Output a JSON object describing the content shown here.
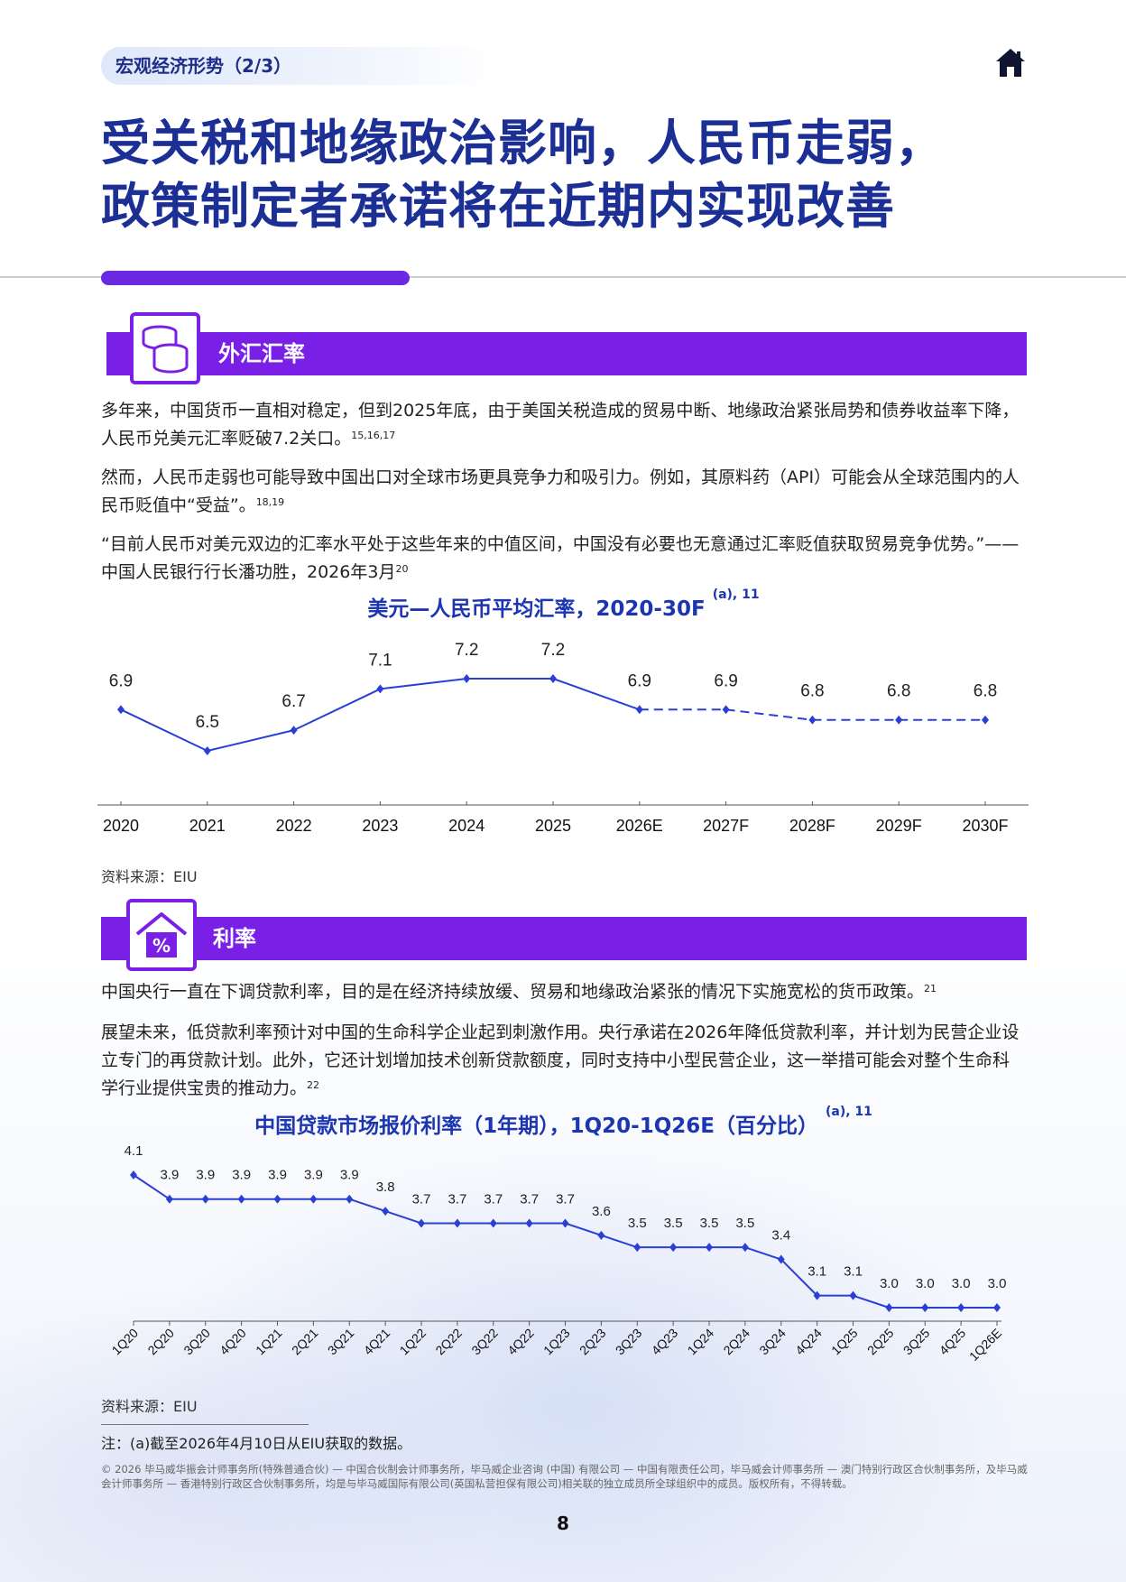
{
  "header": {
    "breadcrumb": "宏观经济形势（2/3）",
    "title_line1": "受关税和地缘政治影响，人民币走弱，",
    "title_line2": "政策制定者承诺将在近期内实现改善"
  },
  "fx_section": {
    "heading": "外汇汇率",
    "icon": "coins-icon",
    "p1": "多年来，中国货币一直相对稳定，但到2025年底，由于美国关税造成的贸易中断、地缘政治紧张局势和债券收益率下降，人民币兑美元汇率贬破7.2关口。",
    "p1_ref": "15,16,17",
    "p2": "然而，人民币走弱也可能导致中国出口对全球市场更具竞争力和吸引力。例如，其原料药（API）可能会从全球范围内的人民币贬值中“受益”。",
    "p2_ref": "18,19",
    "p3": "“目前人民币对美元双边的汇率水平处于这些年来的中值区间，中国没有必要也无意通过汇率贬值获取贸易竞争优势。”——中国人民银行行长潘功胜，2026年3月",
    "p3_ref": "20",
    "chart_title": "美元—人民币平均汇率，2020-30F",
    "chart_title_ref": "(a), 11",
    "source": "资料来源：EIU"
  },
  "rate_section": {
    "heading": "利率",
    "icon": "house-percent-icon",
    "p1": "中国央行一直在下调贷款利率，目的是在经济持续放缓、贸易和地缘政治紧张的情况下实施宽松的货币政策。",
    "p1_ref": "21",
    "p2": "展望未来，低贷款利率预计对中国的生命科学企业起到刺激作用。央行承诺在2026年降低贷款利率，并计划为民营企业设立专门的再贷款计划。此外，它还计划增加技术创新贷款额度，同时支持中小型民营企业，这一举措可能会对整个生命科学行业提供宝贵的推动力。",
    "p2_ref": "22",
    "chart_title": "中国贷款市场报价利率（1年期），1Q20-1Q26E（百分比）",
    "chart_title_ref": "(a), 11",
    "source": "资料来源：EIU"
  },
  "footer": {
    "note": "注：(a)截至2026年4月10日从EIU获取的数据。",
    "legal": "© 2026 毕马威华振会计师事务所(特殊普通合伙) — 中国合伙制会计师事务所，毕马威企业咨询 (中国) 有限公司 — 中国有限责任公司，毕马威会计师事务所 — 澳门特别行政区合伙制事务所，及毕马威会计师事务所 — 香港特别行政区合伙制事务所，均是与毕马威国际有限公司(英国私营担保有限公司)相关联的独立成员所全球组织中的成员。版权所有，不得转载。",
    "page_number": "8"
  },
  "colors": {
    "title": "#1c2f95",
    "accent_purple": "#7a1fe6",
    "series": "#2a3fd6"
  },
  "chart_data": [
    {
      "type": "line",
      "title": "美元—人民币平均汇率，2020-30F",
      "categories": [
        "2020",
        "2021",
        "2022",
        "2023",
        "2024",
        "2025",
        "2026E",
        "2027F",
        "2028F",
        "2029F",
        "2030F"
      ],
      "values": [
        6.9,
        6.5,
        6.7,
        7.1,
        7.2,
        7.2,
        6.9,
        6.9,
        6.8,
        6.8,
        6.8
      ],
      "labels": [
        "6.9",
        "6.5",
        "6.7",
        "7.1",
        "7.2",
        "7.2",
        "6.9",
        "6.9",
        "6.8",
        "6.8",
        "6.8"
      ],
      "forecast_from_index": 6,
      "grid": false
    },
    {
      "type": "line",
      "title": "中国贷款市场报价利率（1年期），1Q20-1Q26E（百分比）",
      "categories": [
        "1Q20",
        "2Q20",
        "3Q20",
        "4Q20",
        "1Q21",
        "2Q21",
        "3Q21",
        "4Q21",
        "1Q22",
        "2Q22",
        "3Q22",
        "4Q22",
        "1Q23",
        "2Q23",
        "3Q23",
        "4Q23",
        "1Q24",
        "2Q24",
        "3Q24",
        "4Q24",
        "1Q25",
        "2Q25",
        "3Q25",
        "4Q25",
        "1Q26E"
      ],
      "values": [
        4.1,
        3.9,
        3.9,
        3.9,
        3.9,
        3.9,
        3.9,
        3.8,
        3.7,
        3.7,
        3.7,
        3.7,
        3.7,
        3.6,
        3.5,
        3.5,
        3.5,
        3.5,
        3.4,
        3.1,
        3.1,
        3.0,
        3.0,
        3.0,
        3.0
      ],
      "labels": [
        "4.1",
        "3.9",
        "3.9",
        "3.9",
        "3.9",
        "3.9",
        "3.9",
        "3.8",
        "3.7",
        "3.7",
        "3.7",
        "3.7",
        "3.7",
        "3.6",
        "3.5",
        "3.5",
        "3.5",
        "3.5",
        "3.4",
        "3.1",
        "3.1",
        "3.0",
        "3.0",
        "3.0",
        "3.0"
      ],
      "grid": false
    }
  ]
}
